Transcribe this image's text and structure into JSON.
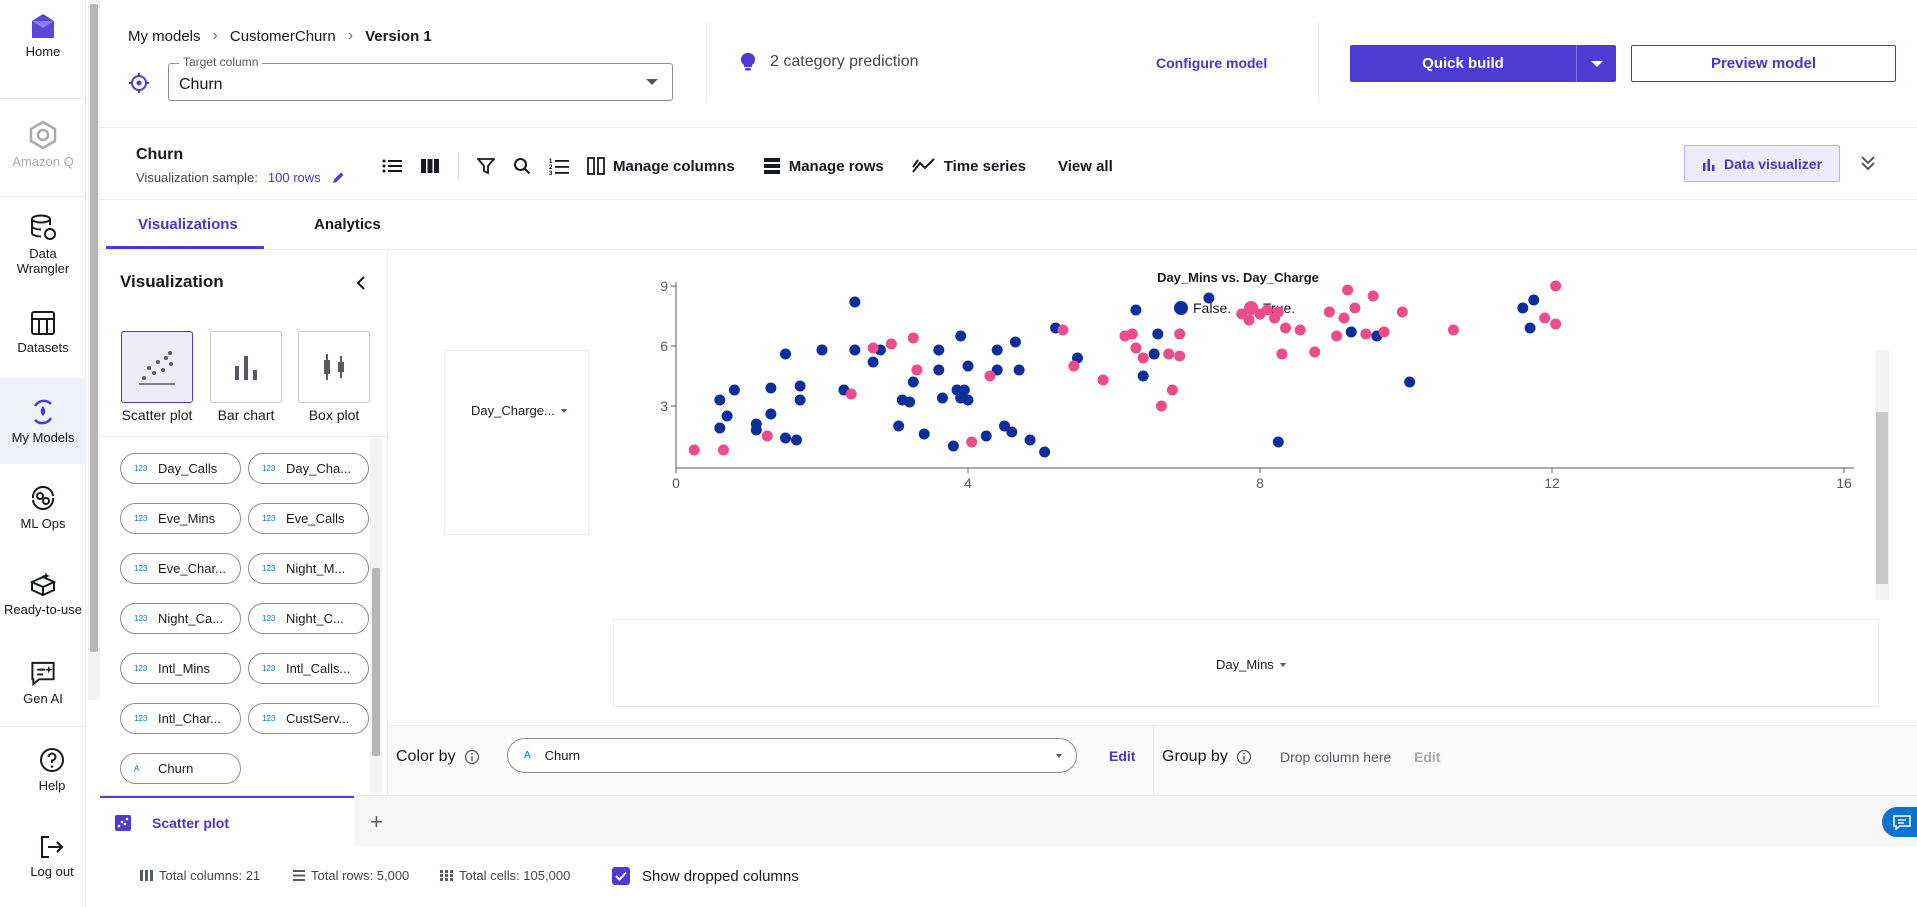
{
  "nav": {
    "items": [
      {
        "label": "Home",
        "icon": "home-icon"
      },
      {
        "label": "Amazon Q",
        "icon": "amazon-q-icon"
      },
      {
        "label": "Data Wrangler",
        "icon": "data-wrangler-icon"
      },
      {
        "label": "Datasets",
        "icon": "datasets-icon"
      },
      {
        "label": "My Models",
        "icon": "my-models-icon"
      },
      {
        "label": "ML Ops",
        "icon": "ml-ops-icon"
      },
      {
        "label": "Ready-to-use",
        "icon": "ready-to-use-icon"
      },
      {
        "label": "Gen AI",
        "icon": "gen-ai-icon"
      },
      {
        "label": "Help",
        "icon": "help-icon"
      },
      {
        "label": "Log out",
        "icon": "log-out-icon"
      }
    ]
  },
  "header": {
    "breadcrumb": [
      "My models",
      "CustomerChurn",
      "Version 1"
    ],
    "target_legend": "Target column",
    "target_value": "Churn",
    "prediction_type": "2 category prediction",
    "configure": "Configure model",
    "quick_build": "Quick build",
    "preview": "Preview model"
  },
  "toolbar": {
    "title": "Churn",
    "sample_label": "Visualization sample:",
    "sample_rows": "100 rows",
    "manage_columns": "Manage columns",
    "manage_rows": "Manage rows",
    "time_series": "Time series",
    "view_all": "View all",
    "data_visualizer": "Data visualizer"
  },
  "tabs": {
    "visualizations": "Visualizations",
    "analytics": "Analytics"
  },
  "viz_panel": {
    "title": "Visualization",
    "types": [
      "Scatter plot",
      "Bar chart",
      "Box plot"
    ],
    "chips": [
      {
        "type": "123",
        "name": "Day_Calls"
      },
      {
        "type": "123",
        "name": "Day_Cha..."
      },
      {
        "type": "123",
        "name": "Eve_Mins"
      },
      {
        "type": "123",
        "name": "Eve_Calls"
      },
      {
        "type": "123",
        "name": "Eve_Char..."
      },
      {
        "type": "123",
        "name": "Night_M..."
      },
      {
        "type": "123",
        "name": "Night_Ca..."
      },
      {
        "type": "123",
        "name": "Night_C..."
      },
      {
        "type": "123",
        "name": "Intl_Mins"
      },
      {
        "type": "123",
        "name": "Intl_Calls..."
      },
      {
        "type": "123",
        "name": "Intl_Char..."
      },
      {
        "type": "123",
        "name": "CustServ..."
      },
      {
        "type": "A",
        "name": "Churn"
      }
    ]
  },
  "chart_data": {
    "type": "scatter",
    "title": "Day_Mins vs. Day_Charge",
    "y_field": "Day_Charge...",
    "x_field": "Day_Mins",
    "xlim": [
      0,
      16
    ],
    "ylim": [
      0,
      9
    ],
    "x_ticks": [
      "0",
      "4",
      "8",
      "12",
      "16"
    ],
    "y_ticks": [
      "3",
      "6",
      "9"
    ],
    "colors": {
      "False.": "#0b2f9a",
      "True.": "#ea4d8c"
    },
    "series": [
      {
        "name": "False.",
        "points": [
          [
            0.6,
            3.3
          ],
          [
            0.6,
            1.9
          ],
          [
            0.7,
            2.5
          ],
          [
            0.8,
            3.8
          ],
          [
            1.1,
            2.1
          ],
          [
            1.1,
            1.8
          ],
          [
            1.3,
            3.9
          ],
          [
            1.3,
            2.6
          ],
          [
            1.5,
            1.4
          ],
          [
            1.5,
            5.6
          ],
          [
            1.65,
            1.3
          ],
          [
            1.7,
            4.0
          ],
          [
            1.7,
            3.3
          ],
          [
            2.0,
            5.8
          ],
          [
            2.3,
            3.8
          ],
          [
            2.45,
            8.2
          ],
          [
            2.45,
            5.8
          ],
          [
            2.7,
            5.2
          ],
          [
            2.8,
            5.8
          ],
          [
            3.05,
            2.0
          ],
          [
            3.1,
            3.3
          ],
          [
            3.2,
            3.2
          ],
          [
            3.25,
            4.2
          ],
          [
            3.4,
            1.6
          ],
          [
            3.6,
            4.8
          ],
          [
            3.6,
            5.8
          ],
          [
            3.65,
            3.4
          ],
          [
            3.8,
            1.0
          ],
          [
            3.85,
            3.8
          ],
          [
            3.9,
            3.4
          ],
          [
            3.95,
            3.8
          ],
          [
            3.9,
            6.5
          ],
          [
            4.0,
            3.3
          ],
          [
            4.0,
            5.0
          ],
          [
            4.25,
            1.5
          ],
          [
            4.4,
            5.8
          ],
          [
            4.4,
            4.8
          ],
          [
            4.5,
            2.0
          ],
          [
            4.6,
            1.7
          ],
          [
            4.65,
            6.2
          ],
          [
            4.7,
            4.8
          ],
          [
            4.85,
            1.3
          ],
          [
            5.05,
            0.7
          ],
          [
            5.2,
            6.9
          ],
          [
            5.5,
            5.4
          ],
          [
            6.3,
            7.8
          ],
          [
            6.4,
            4.5
          ],
          [
            6.55,
            5.6
          ],
          [
            6.6,
            6.6
          ],
          [
            7.3,
            8.4
          ],
          [
            8.25,
            1.2
          ],
          [
            9.25,
            6.7
          ],
          [
            9.6,
            6.5
          ],
          [
            10.05,
            4.2
          ],
          [
            11.6,
            7.9
          ],
          [
            11.7,
            6.9
          ],
          [
            11.75,
            8.3
          ]
        ]
      },
      {
        "name": "True.",
        "points": [
          [
            0.25,
            0.8
          ],
          [
            0.65,
            0.8
          ],
          [
            1.25,
            1.5
          ],
          [
            2.4,
            3.6
          ],
          [
            2.7,
            5.9
          ],
          [
            2.95,
            6.1
          ],
          [
            3.25,
            6.4
          ],
          [
            3.3,
            4.8
          ],
          [
            4.05,
            1.2
          ],
          [
            4.3,
            4.5
          ],
          [
            5.3,
            6.8
          ],
          [
            5.45,
            5.0
          ],
          [
            5.85,
            4.3
          ],
          [
            6.15,
            6.5
          ],
          [
            6.25,
            6.6
          ],
          [
            6.3,
            5.9
          ],
          [
            6.4,
            5.4
          ],
          [
            6.65,
            3.0
          ],
          [
            6.75,
            5.6
          ],
          [
            6.8,
            3.8
          ],
          [
            6.9,
            6.6
          ],
          [
            6.9,
            5.5
          ],
          [
            7.75,
            7.6
          ],
          [
            7.85,
            7.3
          ],
          [
            8.0,
            7.6
          ],
          [
            8.1,
            7.8
          ],
          [
            8.2,
            7.4
          ],
          [
            8.25,
            7.7
          ],
          [
            8.3,
            5.6
          ],
          [
            8.35,
            6.9
          ],
          [
            8.55,
            6.8
          ],
          [
            8.75,
            5.7
          ],
          [
            8.95,
            7.7
          ],
          [
            9.05,
            6.5
          ],
          [
            9.15,
            7.4
          ],
          [
            9.2,
            8.8
          ],
          [
            9.3,
            7.9
          ],
          [
            9.45,
            6.6
          ],
          [
            9.55,
            8.5
          ],
          [
            9.7,
            6.7
          ],
          [
            9.95,
            7.7
          ],
          [
            10.65,
            6.8
          ],
          [
            11.9,
            7.4
          ],
          [
            12.05,
            9.0
          ],
          [
            12.05,
            7.1
          ]
        ]
      }
    ]
  },
  "color_by": {
    "label": "Color by",
    "value": "Churn",
    "edit": "Edit"
  },
  "group_by": {
    "label": "Group by",
    "drop": "Drop column here",
    "edit": "Edit"
  },
  "viz_tabs": {
    "active": "Scatter plot"
  },
  "footer": {
    "total_columns": "Total columns: 21",
    "total_rows": "Total rows: 5,000",
    "total_cells": "Total cells: 105,000",
    "show_dropped": "Show dropped columns"
  }
}
